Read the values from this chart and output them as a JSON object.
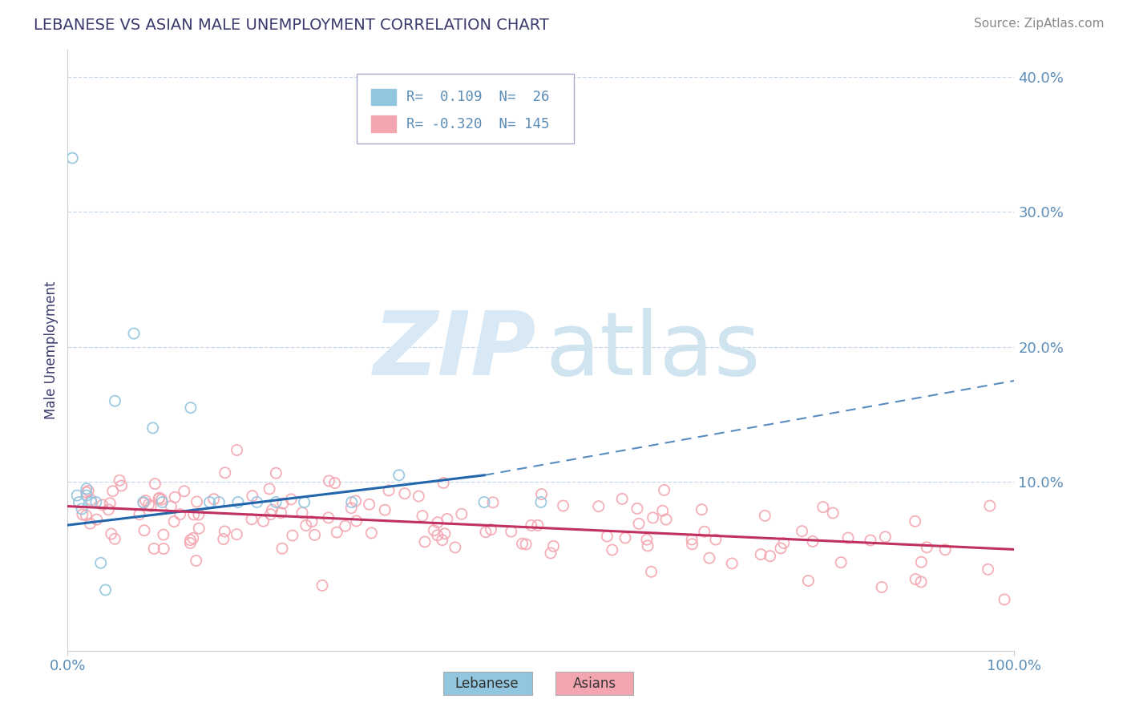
{
  "title": "LEBANESE VS ASIAN MALE UNEMPLOYMENT CORRELATION CHART",
  "source": "Source: ZipAtlas.com",
  "ylabel": "Male Unemployment",
  "xlim": [
    0.0,
    1.0
  ],
  "ylim": [
    -0.025,
    0.42
  ],
  "yticks": [
    0.1,
    0.2,
    0.3,
    0.4
  ],
  "ytick_labels": [
    "10.0%",
    "20.0%",
    "30.0%",
    "40.0%"
  ],
  "xticks": [
    0.0,
    1.0
  ],
  "xtick_labels": [
    "0.0%",
    "100.0%"
  ],
  "lebanese_color": "#92c5de",
  "lebanese_line_color": "#2166ac",
  "asian_color": "#f4a6b0",
  "asian_line_color": "#c03060",
  "title_color": "#3a3a6e",
  "tick_color": "#5b8db8",
  "grid_color": "#c8d8e8",
  "watermark_zip_color": "#d8e8f4",
  "watermark_atlas_color": "#d0e4f0",
  "leb_R": 0.109,
  "leb_N": 26,
  "asian_R": -0.32,
  "asian_N": 145,
  "leb_line_start_x": 0.0,
  "leb_line_start_y": 0.068,
  "leb_line_solid_end_x": 0.44,
  "leb_line_solid_end_y": 0.105,
  "leb_line_dash_end_x": 1.0,
  "leb_line_dash_end_y": 0.175,
  "asian_line_start_x": 0.0,
  "asian_line_start_y": 0.082,
  "asian_line_end_x": 1.0,
  "asian_line_end_y": 0.05
}
